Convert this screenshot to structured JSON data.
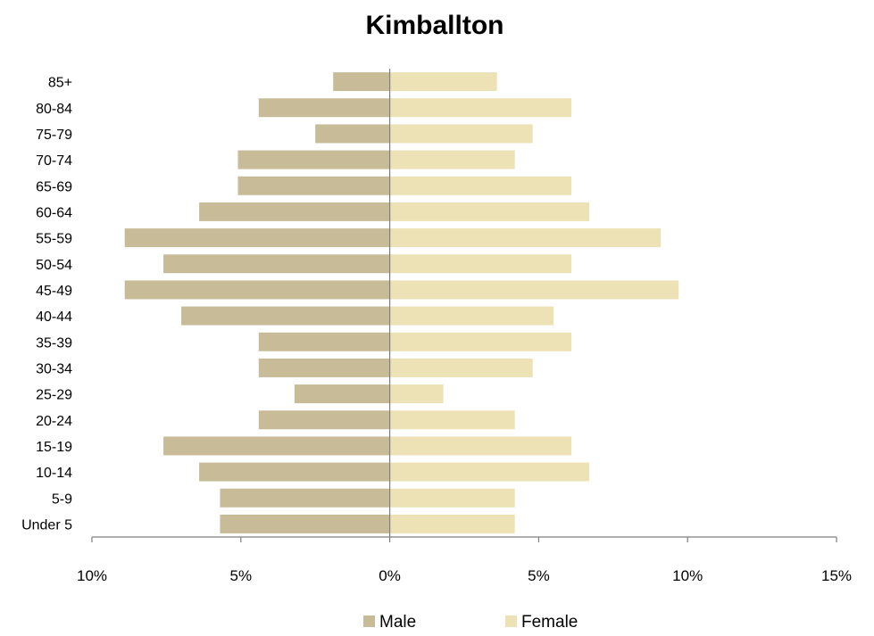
{
  "chart_data": {
    "type": "bar",
    "orientation": "horizontal",
    "title": "Kimballton",
    "categories": [
      "Under 5",
      "5-9",
      "10-14",
      "15-19",
      "20-24",
      "25-29",
      "30-34",
      "35-39",
      "40-44",
      "45-49",
      "50-54",
      "55-59",
      "60-64",
      "65-69",
      "70-74",
      "75-79",
      "80-84",
      "85+"
    ],
    "series": [
      {
        "name": "Male",
        "color": "#c8bb97",
        "values": [
          -5.7,
          -5.7,
          -6.4,
          -7.6,
          -4.4,
          -3.2,
          -4.4,
          -4.4,
          -7.0,
          -8.9,
          -7.6,
          -8.9,
          -6.4,
          -5.1,
          -5.1,
          -2.5,
          -4.4,
          -1.9
        ]
      },
      {
        "name": "Female",
        "color": "#ece2b6",
        "values": [
          4.2,
          4.2,
          6.7,
          6.1,
          4.2,
          1.8,
          4.8,
          6.1,
          5.5,
          9.7,
          6.1,
          9.1,
          6.7,
          6.1,
          4.2,
          4.8,
          6.1,
          3.6
        ]
      }
    ],
    "xlim": [
      -10,
      15
    ],
    "xticks": [
      -10,
      -5,
      0,
      5,
      10,
      15
    ],
    "xtick_labels": [
      "10%",
      "5%",
      "0%",
      "5%",
      "10%",
      "15%"
    ],
    "legend_position": "bottom"
  }
}
